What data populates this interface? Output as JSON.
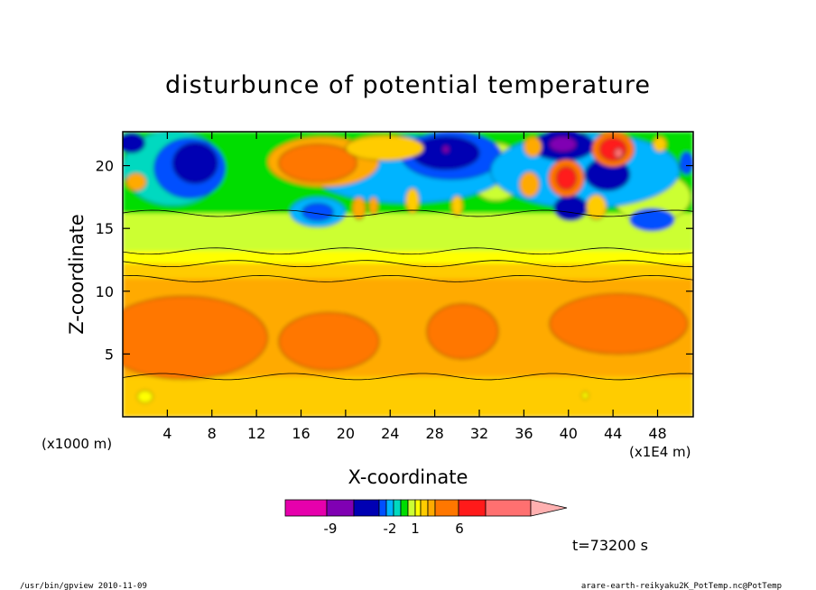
{
  "chart_data": {
    "type": "heatmap",
    "title": "disturbunce of potential temperature",
    "xlabel": "X-coordinate",
    "ylabel": "Z-coordinate",
    "x_unit_label": "(x1E4 m)",
    "y_unit_label": "(x1000 m)",
    "xlim": [
      0,
      51.2
    ],
    "ylim": [
      0,
      22.7
    ],
    "x_ticks": [
      "4",
      "8",
      "12",
      "16",
      "20",
      "24",
      "28",
      "32",
      "36",
      "40",
      "44",
      "48"
    ],
    "x_tick_values": [
      4,
      8,
      12,
      16,
      20,
      24,
      28,
      32,
      36,
      40,
      44,
      48
    ],
    "y_ticks": [
      "5",
      "10",
      "15",
      "20"
    ],
    "y_tick_values": [
      5,
      10,
      15,
      20
    ],
    "contour_levels": [
      -9,
      -2,
      1,
      6
    ],
    "colorbar_labels": [
      "-9",
      "-2",
      "1",
      "6"
    ],
    "colorbar_colors": [
      "#e600ac",
      "#8000b3",
      "#0000b3",
      "#0050ff",
      "#00b4ff",
      "#00d9c0",
      "#00dd00",
      "#ccff33",
      "#ffff00",
      "#ffcc00",
      "#ffaa00",
      "#ff7700",
      "#ff1a1a",
      "#ff7070",
      "#ffb0b0"
    ],
    "time_label": "t=73200 s",
    "footer_left": "/usr/bin/gpview  2010-11-09",
    "footer_right": "arare-earth-reikyaku2K_PotTemp.nc@PotTemp"
  }
}
